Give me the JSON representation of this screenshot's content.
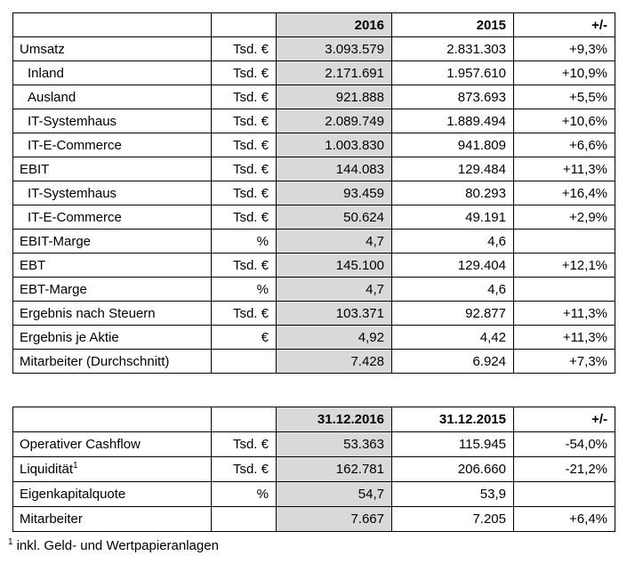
{
  "colors": {
    "highlight_column": "#d9d9d9",
    "border": "#000000",
    "text": "#000000"
  },
  "tables": [
    {
      "name": "key-figures-annual",
      "columns": [
        "",
        "",
        "2016",
        "2015",
        "+/-"
      ],
      "rows": [
        {
          "label": "Umsatz",
          "indent": false,
          "unit": "Tsd. €",
          "current": "3.093.579",
          "prior": "2.831.303",
          "delta": "+9,3%"
        },
        {
          "label": "Inland",
          "indent": true,
          "unit": "Tsd. €",
          "current": "2.171.691",
          "prior": "1.957.610",
          "delta": "+10,9%"
        },
        {
          "label": "Ausland",
          "indent": true,
          "unit": "Tsd. €",
          "current": "921.888",
          "prior": "873.693",
          "delta": "+5,5%"
        },
        {
          "label": "IT-Systemhaus",
          "indent": true,
          "unit": "Tsd. €",
          "current": "2.089.749",
          "prior": "1.889.494",
          "delta": "+10,6%"
        },
        {
          "label": "IT-E-Commerce",
          "indent": true,
          "unit": "Tsd. €",
          "current": "1.003.830",
          "prior": "941.809",
          "delta": "+6,6%"
        },
        {
          "label": "EBIT",
          "indent": false,
          "unit": "Tsd. €",
          "current": "144.083",
          "prior": "129.484",
          "delta": "+11,3%"
        },
        {
          "label": "IT-Systemhaus",
          "indent": true,
          "unit": "Tsd. €",
          "current": "93.459",
          "prior": "80.293",
          "delta": "+16,4%"
        },
        {
          "label": "IT-E-Commerce",
          "indent": true,
          "unit": "Tsd. €",
          "current": "50.624",
          "prior": "49.191",
          "delta": "+2,9%"
        },
        {
          "label": "EBIT-Marge",
          "indent": false,
          "unit": "%",
          "current": "4,7",
          "prior": "4,6",
          "delta": ""
        },
        {
          "label": "EBT",
          "indent": false,
          "unit": "Tsd. €",
          "current": "145.100",
          "prior": "129.404",
          "delta": "+12,1%"
        },
        {
          "label": "EBT-Marge",
          "indent": false,
          "unit": "%",
          "current": "4,7",
          "prior": "4,6",
          "delta": ""
        },
        {
          "label": "Ergebnis nach Steuern",
          "indent": false,
          "unit": "Tsd. €",
          "current": "103.371",
          "prior": "92.877",
          "delta": "+11,3%"
        },
        {
          "label": "Ergebnis je Aktie",
          "indent": false,
          "unit": "€",
          "current": "4,92",
          "prior": "4,42",
          "delta": "+11,3%"
        },
        {
          "label": "Mitarbeiter (Durchschnitt)",
          "indent": false,
          "unit": "",
          "current": "7.428",
          "prior": "6.924",
          "delta": "+7,3%"
        }
      ]
    },
    {
      "name": "key-figures-balance-date",
      "columns": [
        "",
        "",
        "31.12.2016",
        "31.12.2015",
        "+/-"
      ],
      "rows": [
        {
          "label": "Operativer Cashflow",
          "indent": false,
          "unit": "Tsd. €",
          "current": "53.363",
          "prior": "115.945",
          "delta": "-54,0%"
        },
        {
          "label": "Liquidität",
          "sup": "1",
          "indent": false,
          "unit": "Tsd. €",
          "current": "162.781",
          "prior": "206.660",
          "delta": "-21,2%"
        },
        {
          "label": "Eigenkapitalquote",
          "indent": false,
          "unit": "%",
          "current": "54,7",
          "prior": "53,9",
          "delta": ""
        },
        {
          "label": "Mitarbeiter",
          "indent": false,
          "unit": "",
          "current": "7.667",
          "prior": "7.205",
          "delta": "+6,4%"
        }
      ]
    }
  ],
  "footnote": {
    "marker": "1",
    "text": "inkl. Geld- und Wertpapieranlagen"
  }
}
